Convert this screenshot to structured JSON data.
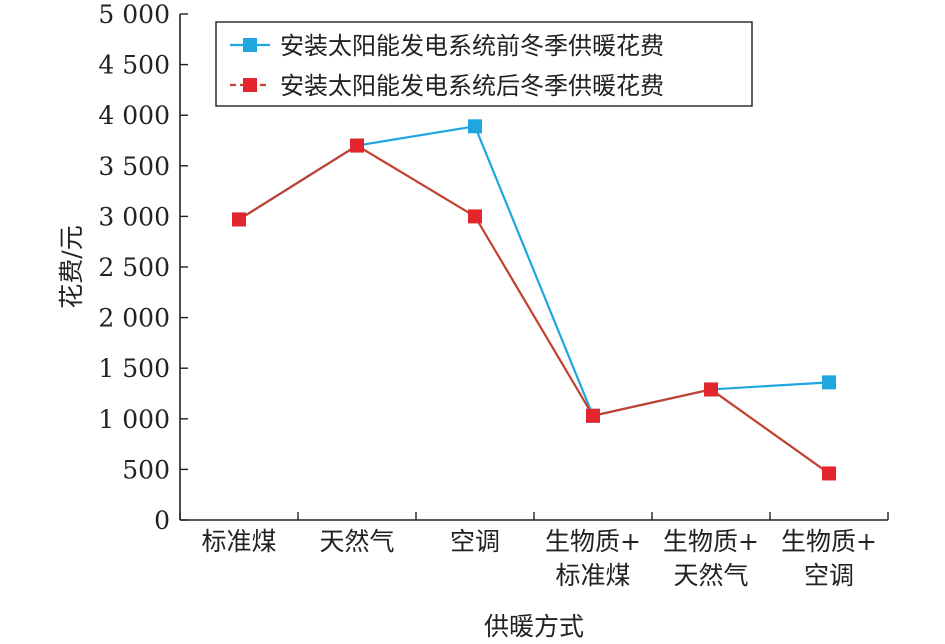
{
  "chart_data": {
    "type": "line",
    "xlabel": "供暖方式",
    "ylabel": "花费/元",
    "ylim": [
      0,
      5000
    ],
    "yticks": [
      0,
      500,
      1000,
      1500,
      2000,
      2500,
      3000,
      3500,
      4000,
      4500,
      5000
    ],
    "ytick_labels": [
      "0",
      "500",
      "1 000",
      "1 500",
      "2 000",
      "2 500",
      "3 000",
      "3 500",
      "4 000",
      "4 500",
      "5 000"
    ],
    "categories": [
      [
        "标准煤"
      ],
      [
        "天然气"
      ],
      [
        "空调"
      ],
      [
        "生物质+",
        "标准煤"
      ],
      [
        "生物质+",
        "天然气"
      ],
      [
        "生物质+",
        "空调"
      ]
    ],
    "series": [
      {
        "name": "安装太阳能发电系统前冬季供暖花费",
        "color": "#1ea6e0",
        "marker": "square",
        "values": [
          2970,
          3700,
          3890,
          1030,
          1290,
          1360
        ]
      },
      {
        "name": "安装太阳能发电系统后冬季供暖花费",
        "color": "#e3262e",
        "line_color": "#c4402f",
        "marker": "square",
        "values": [
          2970,
          3700,
          3000,
          1030,
          1290,
          460
        ]
      }
    ],
    "legend_position": "top-right",
    "grid": false
  }
}
